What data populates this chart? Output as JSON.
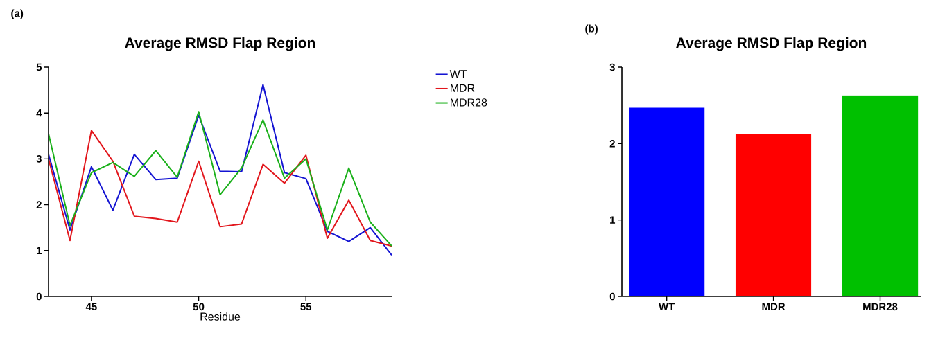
{
  "chart_data": [
    {
      "type": "line",
      "title": "Average RMSD Flap Region",
      "xlabel": "Residue",
      "annotations": [
        "(a)"
      ],
      "x": [
        43,
        44,
        45,
        46,
        47,
        48,
        49,
        50,
        51,
        52,
        53,
        54,
        55,
        56,
        57,
        58,
        59
      ],
      "series": [
        {
          "name": "WT",
          "color": "#1414d2",
          "values": [
            3.1,
            1.45,
            2.83,
            1.88,
            3.1,
            2.55,
            2.58,
            3.95,
            2.73,
            2.72,
            4.62,
            2.7,
            2.57,
            1.42,
            1.2,
            1.5,
            0.9
          ]
        },
        {
          "name": "MDR",
          "color": "#e2161c",
          "values": [
            3.0,
            1.22,
            3.62,
            2.95,
            1.75,
            1.7,
            1.62,
            2.95,
            1.52,
            1.58,
            2.88,
            2.47,
            3.08,
            1.27,
            2.1,
            1.22,
            1.1
          ]
        },
        {
          "name": "MDR28",
          "color": "#1ab01a",
          "values": [
            3.55,
            1.55,
            2.7,
            2.92,
            2.62,
            3.18,
            2.6,
            4.03,
            2.22,
            2.8,
            3.85,
            2.58,
            3.0,
            1.45,
            2.8,
            1.62,
            1.1
          ]
        }
      ],
      "xlim": [
        43,
        59
      ],
      "xticks": [
        45,
        50,
        55
      ],
      "ylim": [
        0,
        5
      ],
      "yticks": [
        0,
        1,
        2,
        3,
        4,
        5
      ],
      "legend": "right"
    },
    {
      "type": "bar",
      "title": "Average RMSD Flap Region",
      "annotations": [
        "(b)"
      ],
      "categories": [
        "WT",
        "MDR",
        "MDR28"
      ],
      "values": [
        2.47,
        2.13,
        2.63
      ],
      "colors": [
        "#0000ff",
        "#ff0000",
        "#00c000"
      ],
      "ylim": [
        0,
        3
      ],
      "yticks": [
        0,
        1,
        2,
        3
      ]
    }
  ]
}
